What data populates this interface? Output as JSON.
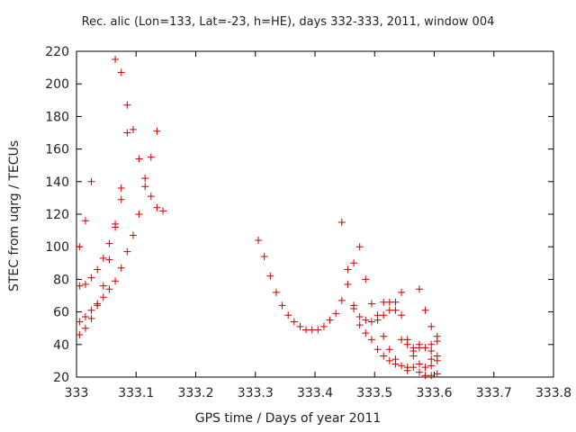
{
  "chart_data": {
    "type": "scatter",
    "title": "Rec. alic (Lon=133, Lat=-23, h=HE), days 332-333, 2011, window 004",
    "xlabel": "GPS time / Days of year 2011",
    "ylabel": "STEC from uqrg / TECUs",
    "xlim": [
      333,
      333.8
    ],
    "ylim": [
      20,
      220
    ],
    "xticks": [
      "333",
      "333.1",
      "333.2",
      "333.3",
      "333.4",
      "333.5",
      "333.6",
      "333.7",
      "333.8"
    ],
    "yticks": [
      "20",
      "40",
      "60",
      "80",
      "100",
      "120",
      "140",
      "160",
      "180",
      "200",
      "220"
    ],
    "marker": "+",
    "color": "#cc0000",
    "points": [
      [
        333.005,
        100
      ],
      [
        333.005,
        76
      ],
      [
        333.005,
        54
      ],
      [
        333.005,
        46
      ],
      [
        333.015,
        116
      ],
      [
        333.015,
        77
      ],
      [
        333.015,
        57
      ],
      [
        333.015,
        50
      ],
      [
        333.025,
        140
      ],
      [
        333.025,
        81
      ],
      [
        333.025,
        61
      ],
      [
        333.025,
        56
      ],
      [
        333.035,
        86
      ],
      [
        333.035,
        65
      ],
      [
        333.035,
        64
      ],
      [
        333.045,
        93
      ],
      [
        333.045,
        76
      ],
      [
        333.045,
        69
      ],
      [
        333.055,
        102
      ],
      [
        333.055,
        92
      ],
      [
        333.055,
        74
      ],
      [
        333.065,
        114
      ],
      [
        333.065,
        112
      ],
      [
        333.065,
        79
      ],
      [
        333.065,
        215
      ],
      [
        333.075,
        207
      ],
      [
        333.075,
        136
      ],
      [
        333.075,
        129
      ],
      [
        333.075,
        87
      ],
      [
        333.085,
        187
      ],
      [
        333.085,
        170
      ],
      [
        333.085,
        97
      ],
      [
        333.095,
        172
      ],
      [
        333.095,
        107
      ],
      [
        333.105,
        154
      ],
      [
        333.105,
        120
      ],
      [
        333.115,
        142
      ],
      [
        333.115,
        137
      ],
      [
        333.125,
        155
      ],
      [
        333.125,
        131
      ],
      [
        333.135,
        171
      ],
      [
        333.135,
        124
      ],
      [
        333.145,
        122
      ],
      [
        333.305,
        104
      ],
      [
        333.315,
        94
      ],
      [
        333.325,
        82
      ],
      [
        333.335,
        72
      ],
      [
        333.345,
        64
      ],
      [
        333.355,
        58
      ],
      [
        333.365,
        54
      ],
      [
        333.375,
        51
      ],
      [
        333.385,
        49
      ],
      [
        333.395,
        49
      ],
      [
        333.405,
        49
      ],
      [
        333.415,
        51
      ],
      [
        333.425,
        55
      ],
      [
        333.435,
        59
      ],
      [
        333.445,
        115
      ],
      [
        333.445,
        67
      ],
      [
        333.455,
        86
      ],
      [
        333.455,
        77
      ],
      [
        333.465,
        90
      ],
      [
        333.465,
        64
      ],
      [
        333.465,
        62
      ],
      [
        333.475,
        100
      ],
      [
        333.475,
        57
      ],
      [
        333.475,
        52
      ],
      [
        333.485,
        80
      ],
      [
        333.485,
        55
      ],
      [
        333.485,
        47
      ],
      [
        333.495,
        65
      ],
      [
        333.495,
        54
      ],
      [
        333.495,
        43
      ],
      [
        333.505,
        58
      ],
      [
        333.505,
        55
      ],
      [
        333.505,
        37
      ],
      [
        333.515,
        66
      ],
      [
        333.515,
        58
      ],
      [
        333.515,
        45
      ],
      [
        333.515,
        33
      ],
      [
        333.525,
        66
      ],
      [
        333.525,
        61
      ],
      [
        333.525,
        37
      ],
      [
        333.525,
        30
      ],
      [
        333.535,
        66
      ],
      [
        333.535,
        61
      ],
      [
        333.535,
        31
      ],
      [
        333.535,
        28
      ],
      [
        333.545,
        72
      ],
      [
        333.545,
        58
      ],
      [
        333.545,
        43
      ],
      [
        333.545,
        27
      ],
      [
        333.555,
        43
      ],
      [
        333.555,
        40
      ],
      [
        333.555,
        26
      ],
      [
        333.555,
        24
      ],
      [
        333.565,
        38
      ],
      [
        333.565,
        36
      ],
      [
        333.565,
        33
      ],
      [
        333.565,
        26
      ],
      [
        333.575,
        74
      ],
      [
        333.575,
        40
      ],
      [
        333.575,
        38
      ],
      [
        333.575,
        28
      ],
      [
        333.575,
        23
      ],
      [
        333.585,
        61
      ],
      [
        333.585,
        38
      ],
      [
        333.585,
        26
      ],
      [
        333.585,
        21
      ],
      [
        333.595,
        51
      ],
      [
        333.595,
        40
      ],
      [
        333.595,
        36
      ],
      [
        333.595,
        31
      ],
      [
        333.595,
        27
      ],
      [
        333.595,
        21
      ],
      [
        333.605,
        45
      ],
      [
        333.605,
        42
      ],
      [
        333.605,
        33
      ],
      [
        333.605,
        30
      ],
      [
        333.605,
        22
      ]
    ]
  }
}
